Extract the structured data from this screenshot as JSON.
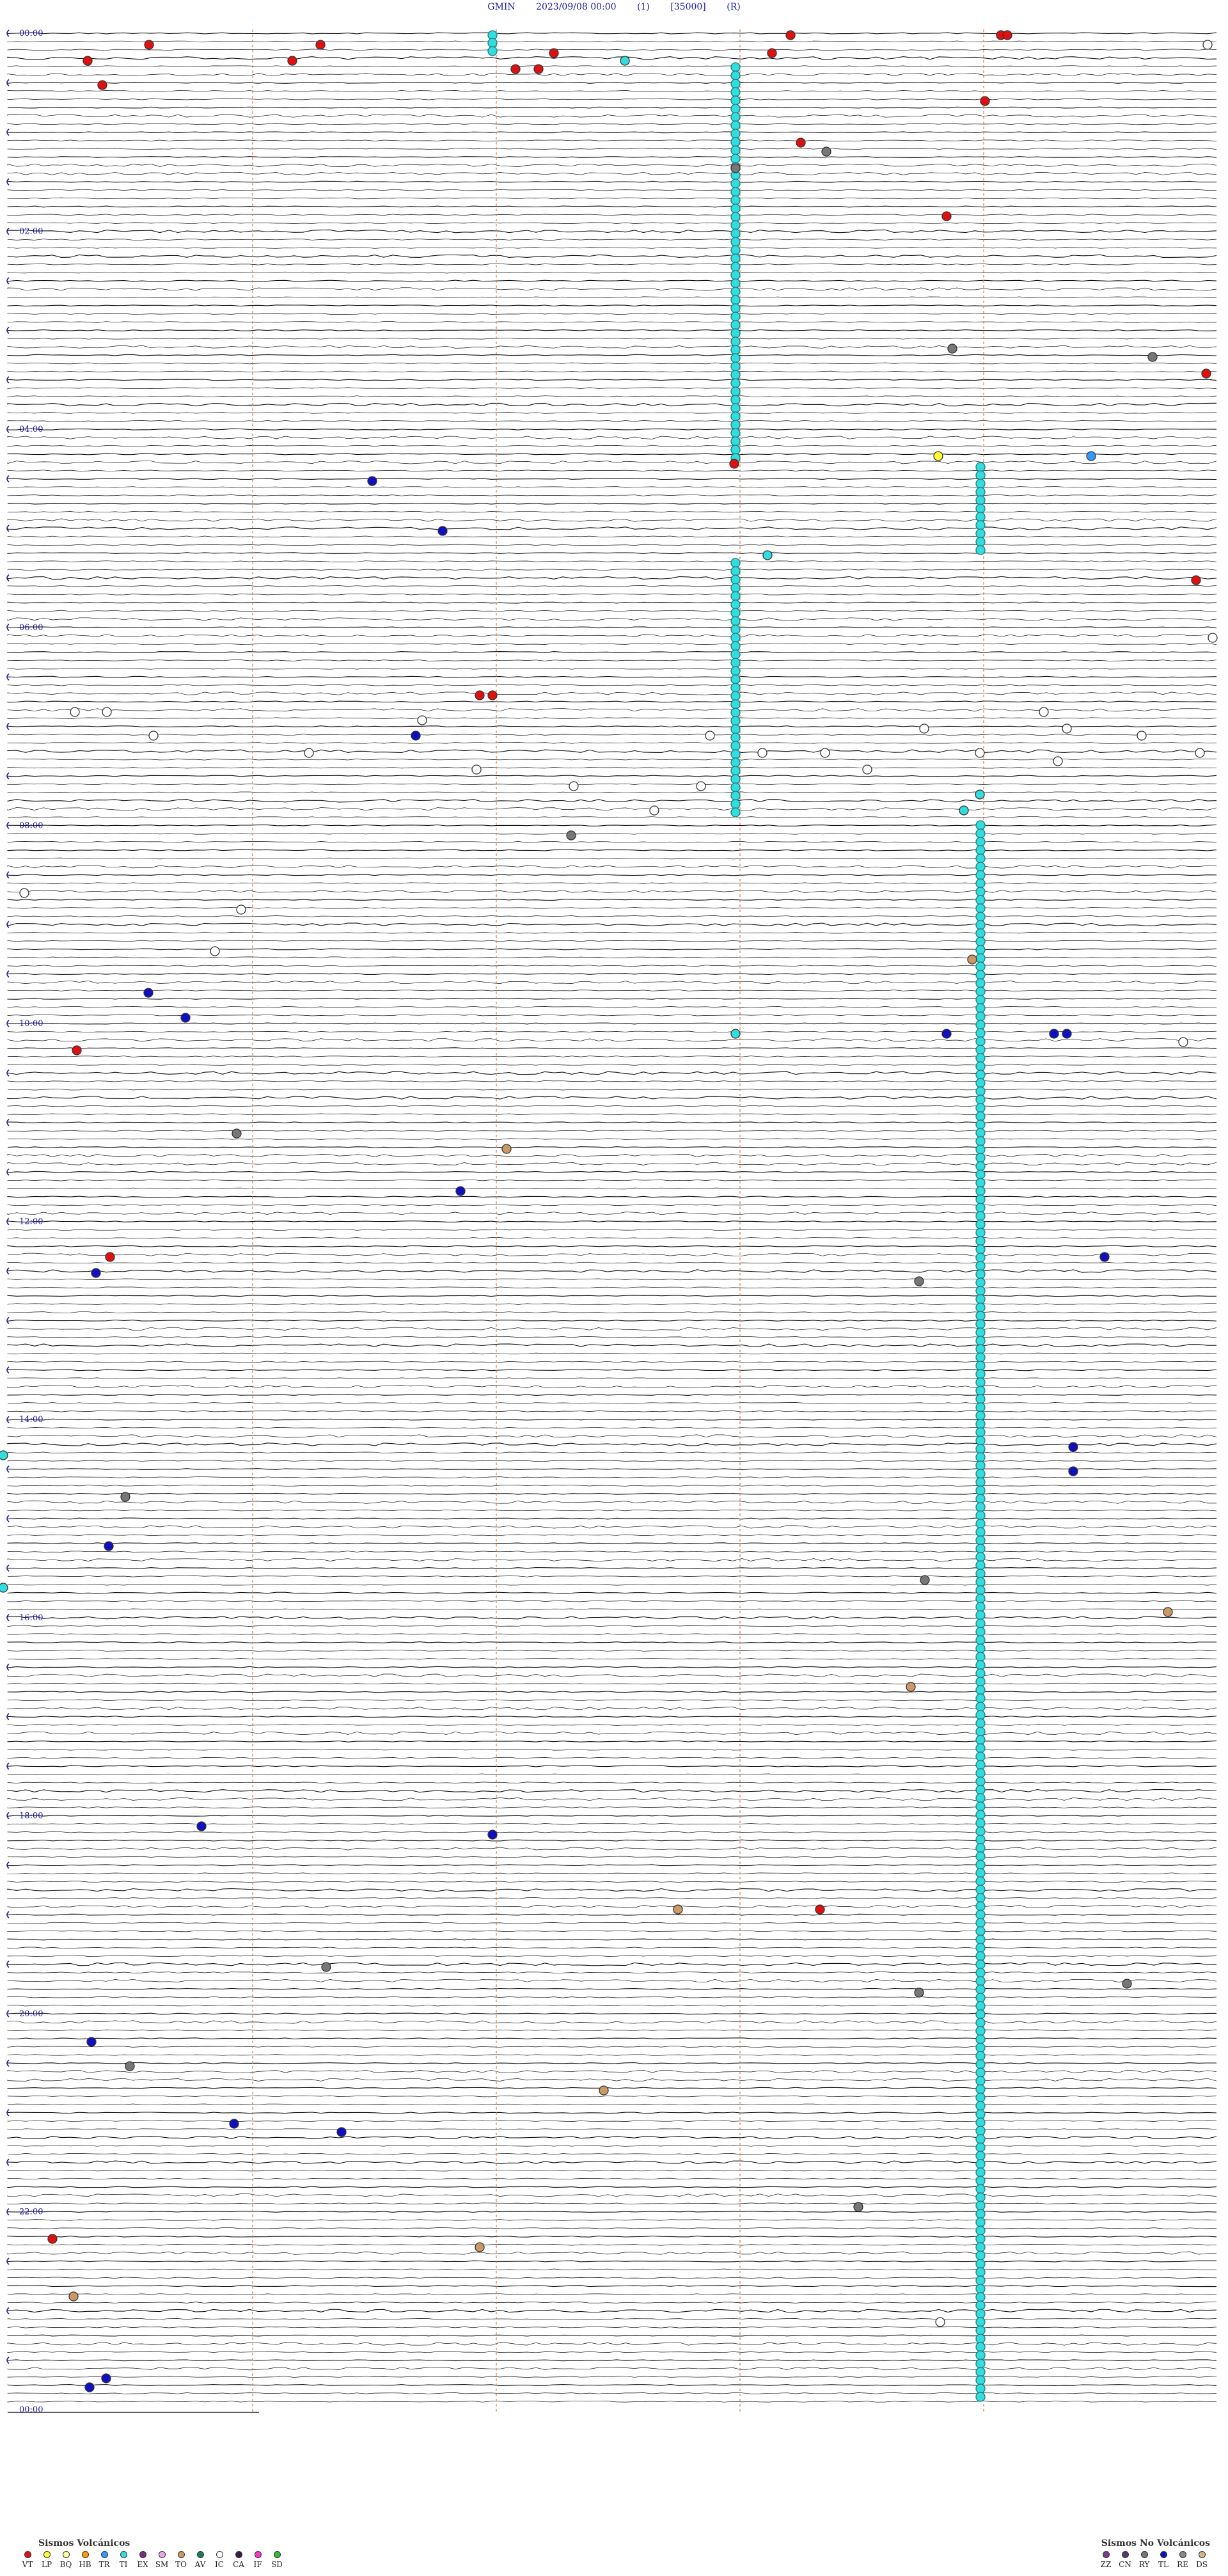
{
  "header": {
    "station": "GMIN",
    "datetime": "2023/09/08 00:00",
    "channel": "(1)",
    "scale": "[35000]",
    "mode": "(R)"
  },
  "time_labels": [
    "00:00",
    "02:00",
    "04:00",
    "06:00",
    "08:00",
    "10:00",
    "12:00",
    "14:00",
    "16:00",
    "18:00",
    "20:00",
    "22:00",
    "00:00"
  ],
  "legend_volcanic": {
    "title": "Sismos Volcánicos",
    "items": [
      {
        "code": "VT",
        "color": "#e01010"
      },
      {
        "code": "LP",
        "color": "#ffff33"
      },
      {
        "code": "BQ",
        "color": "#ffff99"
      },
      {
        "code": "HB",
        "color": "#ff9a00"
      },
      {
        "code": "TR",
        "color": "#3399ff"
      },
      {
        "code": "TI",
        "color": "#33dddd"
      },
      {
        "code": "EX",
        "color": "#7a2a8a"
      },
      {
        "code": "SM",
        "color": "#e9a7e9"
      },
      {
        "code": "TO",
        "color": "#cc9966"
      },
      {
        "code": "AV",
        "color": "#1f7a5a"
      },
      {
        "code": "IC",
        "color": "#ffffff"
      },
      {
        "code": "CA",
        "color": "#3a1a4a"
      },
      {
        "code": "IF",
        "color": "#ff33cc"
      },
      {
        "code": "SD",
        "color": "#33bb33"
      }
    ]
  },
  "legend_nonvolcanic": {
    "title": "Sismos No Volcánicos",
    "items": [
      {
        "code": "ZZ",
        "color": "#7a3a9a"
      },
      {
        "code": "CN",
        "color": "#5a3a6a"
      },
      {
        "code": "RY",
        "color": "#777777"
      },
      {
        "code": "TL",
        "color": "#1010c0"
      },
      {
        "code": "RE",
        "color": "#888888"
      },
      {
        "code": "DS",
        "color": "#d2b48c"
      }
    ]
  },
  "colors": {
    "label": "#1a1aa0",
    "trace": "#111111",
    "marker_guides": "#e07a3a",
    "cyan_event": "#33dddd",
    "cyan_event_border": "#1a7a7a"
  }
}
